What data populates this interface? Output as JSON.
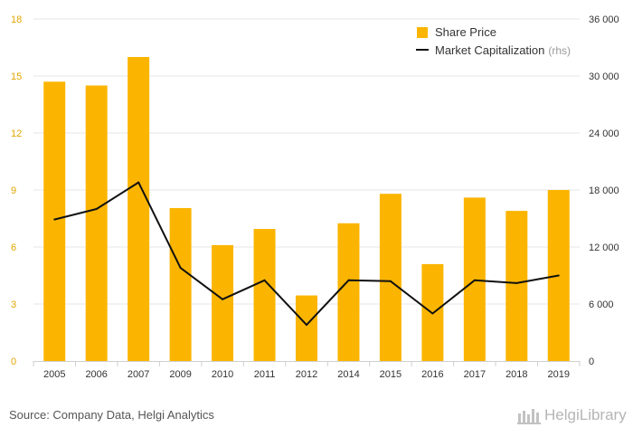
{
  "chart_data": {
    "type": "bar",
    "categories": [
      "2005",
      "2006",
      "2007",
      "2009",
      "2010",
      "2011",
      "2012",
      "2014",
      "2015",
      "2016",
      "2017",
      "2018",
      "2019"
    ],
    "series": [
      {
        "name": "Share Price",
        "type": "bar",
        "axis": "left",
        "values": [
          14.7,
          14.5,
          16.0,
          8.05,
          6.1,
          6.95,
          3.45,
          7.25,
          8.8,
          5.1,
          8.6,
          7.9,
          9.0
        ]
      },
      {
        "name": "Market Capitalization",
        "name_suffix": "(rhs)",
        "type": "line",
        "axis": "right",
        "values": [
          14900,
          16000,
          18800,
          9800,
          6500,
          8500,
          3800,
          8500,
          8400,
          5000,
          8500,
          8200,
          9000
        ]
      }
    ],
    "y_left": {
      "ticks": [
        "0",
        "3",
        "6",
        "9",
        "12",
        "15",
        "18"
      ],
      "range": [
        0,
        18
      ]
    },
    "y_right": {
      "ticks": [
        "0",
        "6 000",
        "12 000",
        "18 000",
        "24 000",
        "30 000",
        "36 000"
      ],
      "range": [
        0,
        36000
      ]
    },
    "grid": true,
    "legend_position": "top-right"
  },
  "footer": {
    "source": "Source: Company Data, Helgi Analytics",
    "brand": "HelgiLibrary"
  },
  "colors": {
    "bar": "#FBB500",
    "line": "#111111",
    "left_tick": "#E3A600",
    "right_tick": "#333333",
    "grid": "#E6E6E6"
  }
}
